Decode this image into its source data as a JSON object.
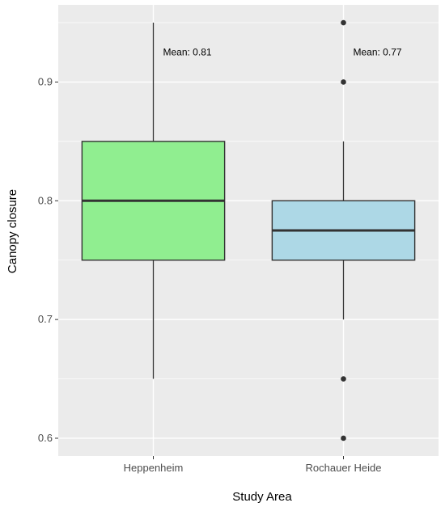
{
  "chart_data": {
    "type": "boxplot",
    "title": "",
    "xlabel": "Study Area",
    "ylabel": "Canopy closure",
    "categories": [
      "Heppenheim",
      "Rochauer Heide"
    ],
    "ylim": [
      0.585,
      0.965
    ],
    "yticks": [
      0.6,
      0.7,
      0.8,
      0.9
    ],
    "ytick_labels": [
      "0.6",
      "0.7",
      "0.8",
      "0.9"
    ],
    "grid": true,
    "legend": "none",
    "boxes": [
      {
        "category": "Heppenheim",
        "fill": "#90ee90",
        "whisker_low": 0.65,
        "q1": 0.75,
        "median": 0.8,
        "q3": 0.85,
        "whisker_high": 0.95,
        "outliers": [],
        "annotation": "Mean: 0.81",
        "annotation_y": 0.925
      },
      {
        "category": "Rochauer Heide",
        "fill": "#add8e6",
        "whisker_low": 0.7,
        "q1": 0.75,
        "median": 0.775,
        "q3": 0.8,
        "whisker_high": 0.85,
        "outliers": [
          0.6,
          0.65,
          0.9,
          0.95
        ],
        "annotation": "Mean: 0.77",
        "annotation_y": 0.925
      }
    ],
    "colors": {
      "panel_background": "#ebebeb",
      "grid_major": "#ffffff",
      "box_outline": "#333333"
    }
  }
}
